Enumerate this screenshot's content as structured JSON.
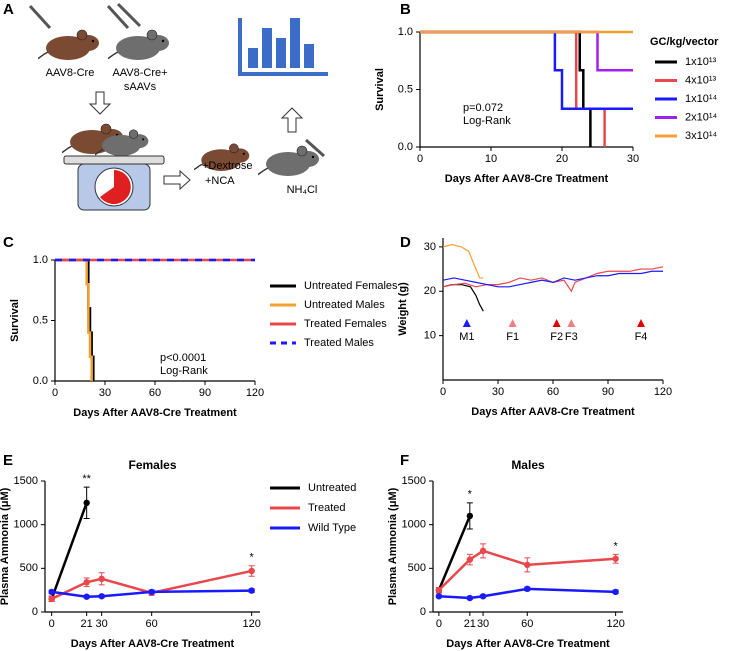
{
  "panel_a": {
    "label": "A",
    "group1": "AAV8-Cre",
    "group2": [
      "AAV8-Cre+",
      "sAAVs"
    ],
    "treatment": [
      "+Dextrose",
      "+NCA"
    ],
    "challenge": "NH₄Cl"
  },
  "chart_data": [
    {
      "label": "B",
      "type": "survival",
      "ylabel": "Survival",
      "xlabel": "Days After AAV8-Cre Treatment",
      "xlim": [
        0,
        30
      ],
      "xticks": [
        0,
        10,
        20,
        30
      ],
      "ylim": [
        0,
        1
      ],
      "yticks": [
        {
          "value": 0,
          "label": "0.0"
        },
        {
          "value": 0.5,
          "label": "0.5"
        },
        {
          "value": 1,
          "label": "1.0"
        }
      ],
      "legend_title": "GC/kg/vector",
      "annotations": [
        "p=0.072",
        "Log-Rank"
      ],
      "series": [
        {
          "name": "1x10¹³",
          "color": "#000000",
          "x": [
            0,
            22.5,
            23,
            24
          ],
          "values": [
            1,
            0.667,
            0.333,
            0
          ]
        },
        {
          "name": "4x10¹³",
          "color": "#e8474b",
          "x": [
            0,
            22,
            26
          ],
          "values": [
            1,
            0.333,
            0
          ]
        },
        {
          "name": "1x10¹⁴",
          "color": "#1a1aff",
          "x": [
            0,
            19,
            20,
            30
          ],
          "values": [
            1,
            0.667,
            0.333,
            0.333
          ]
        },
        {
          "name": "2x10¹⁴",
          "color": "#a020f0",
          "x": [
            0,
            25,
            30
          ],
          "values": [
            1,
            0.667,
            0.667
          ]
        },
        {
          "name": "3x10¹⁴",
          "color": "#f5a030",
          "x": [
            0,
            30
          ],
          "values": [
            1,
            1
          ]
        }
      ]
    },
    {
      "label": "C",
      "type": "survival",
      "ylabel": "Survival",
      "xlabel": "Days After AAV8-Cre Treatment",
      "xlim": [
        0,
        120
      ],
      "xticks": [
        0,
        30,
        60,
        90,
        120
      ],
      "ylim": [
        0,
        1
      ],
      "yticks": [
        {
          "value": 0,
          "label": "0.0"
        },
        {
          "value": 0.5,
          "label": "0.5"
        },
        {
          "value": 1,
          "label": "1.0"
        }
      ],
      "annotations": [
        "p<0.0001",
        "Log-Rank"
      ],
      "series": [
        {
          "name": "Untreated Females",
          "color": "#000000",
          "x": [
            0,
            20,
            21,
            22,
            23
          ],
          "values": [
            1,
            0.6,
            0.4,
            0.2,
            0
          ]
        },
        {
          "name": "Untreated Males",
          "color": "#f5a030",
          "x": [
            0,
            19,
            20,
            21,
            22
          ],
          "values": [
            1,
            0.8,
            0.4,
            0.2,
            0
          ]
        },
        {
          "name": "Treated Females",
          "color": "#e8474b",
          "x": [
            0,
            120
          ],
          "values": [
            1,
            1
          ]
        },
        {
          "name": "Treated Males",
          "color": "#1a1aff",
          "dashed": true,
          "x": [
            0,
            120
          ],
          "values": [
            1,
            1
          ]
        }
      ]
    },
    {
      "label": "D",
      "type": "line",
      "ylabel": "Weight (g)",
      "xlabel": "Days After AAV8-Cre Treatment",
      "xlim": [
        0,
        120
      ],
      "xticks": [
        0,
        30,
        60,
        90,
        120
      ],
      "ylim": [
        0,
        32
      ],
      "yticks": [
        10,
        20,
        30
      ],
      "events": [
        {
          "label": "M1",
          "x": 13,
          "color": "#1a1aff"
        },
        {
          "label": "F1",
          "x": 38,
          "color": "#f08080"
        },
        {
          "label": "F2",
          "x": 62,
          "color": "#e00000"
        },
        {
          "label": "F3",
          "x": 70,
          "color": "#f08080"
        },
        {
          "label": "F4",
          "x": 108,
          "color": "#e00000"
        }
      ],
      "series": [
        {
          "color": "#000000",
          "x": [
            0,
            5,
            10,
            15,
            18,
            20,
            22
          ],
          "values": [
            21,
            21.5,
            21.5,
            21,
            19,
            17,
            15.5
          ]
        },
        {
          "color": "#f5a030",
          "x": [
            0,
            5,
            10,
            14,
            17,
            20,
            22
          ],
          "values": [
            30,
            30.5,
            30,
            29,
            26,
            23,
            23
          ]
        },
        {
          "color": "#e8474b",
          "x": [
            0,
            6,
            12,
            18,
            24,
            30,
            36,
            42,
            48,
            54,
            60,
            66,
            70,
            72,
            78,
            84,
            90,
            96,
            102,
            108,
            114,
            120
          ],
          "values": [
            21,
            21.5,
            21.8,
            21,
            21.5,
            21.5,
            22,
            23,
            22.5,
            23,
            22,
            22.5,
            20,
            22,
            23,
            24,
            24.5,
            24.5,
            24.5,
            25,
            25,
            25.5
          ]
        },
        {
          "color": "#1a1aff",
          "x": [
            0,
            6,
            12,
            18,
            24,
            30,
            36,
            42,
            48,
            54,
            60,
            66,
            72,
            78,
            84,
            90,
            96,
            102,
            108,
            114,
            120
          ],
          "values": [
            22.5,
            23,
            22.5,
            22,
            21.5,
            21,
            21,
            21.5,
            22,
            22.5,
            22,
            23,
            22.5,
            23,
            23.5,
            23.5,
            24,
            24,
            24,
            24.5,
            24.5
          ]
        }
      ]
    },
    {
      "label": "E",
      "type": "line",
      "title": "Females",
      "ylabel": "Plasma Ammonia (μM)",
      "xlabel": "Days After AAV8-Cre Treatment",
      "xlim": [
        -4,
        125
      ],
      "xticks": [
        0,
        21,
        30,
        60,
        120
      ],
      "ylim": [
        0,
        1500
      ],
      "yticks": [
        0,
        500,
        1000,
        1500
      ],
      "point_markers": true,
      "significance": [
        {
          "text": "**",
          "x": 21
        },
        {
          "text": "*",
          "x": 120
        }
      ],
      "series": [
        {
          "name": "Untreated",
          "color": "#000000",
          "x": [
            0,
            21
          ],
          "values": [
            150,
            1250
          ],
          "errors": [
            30,
            180
          ]
        },
        {
          "name": "Treated",
          "color": "#e8474b",
          "x": [
            0,
            21,
            30,
            60,
            120
          ],
          "values": [
            150,
            340,
            380,
            220,
            470
          ],
          "errors": [
            30,
            50,
            70,
            30,
            60
          ]
        },
        {
          "name": "Wild Type",
          "color": "#1a1aff",
          "x": [
            0,
            21,
            30,
            60,
            120
          ],
          "values": [
            230,
            175,
            180,
            230,
            245
          ],
          "errors": [
            20,
            15,
            15,
            20,
            20
          ]
        }
      ]
    },
    {
      "label": "F",
      "type": "line",
      "title": "Males",
      "ylabel": "Plasma Ammonia (μM)",
      "xlabel": "Days After AAV8-Cre Treatment",
      "xlim": [
        -4,
        125
      ],
      "xticks": [
        0,
        21,
        30,
        60,
        120
      ],
      "ylim": [
        0,
        1500
      ],
      "yticks": [
        0,
        500,
        1000,
        1500
      ],
      "point_markers": true,
      "significance": [
        {
          "text": "*",
          "x": 21
        },
        {
          "text": "*",
          "x": 120
        }
      ],
      "series": [
        {
          "color": "#000000",
          "x": [
            0,
            21
          ],
          "values": [
            250,
            1100
          ],
          "errors": [
            30,
            150
          ]
        },
        {
          "color": "#e8474b",
          "x": [
            0,
            21,
            30,
            60,
            120
          ],
          "values": [
            250,
            600,
            700,
            540,
            610
          ],
          "errors": [
            30,
            60,
            80,
            80,
            50
          ]
        },
        {
          "color": "#1a1aff",
          "x": [
            0,
            21,
            30,
            60,
            120
          ],
          "values": [
            180,
            160,
            180,
            265,
            230
          ],
          "errors": [
            15,
            15,
            15,
            20,
            20
          ]
        }
      ]
    }
  ]
}
